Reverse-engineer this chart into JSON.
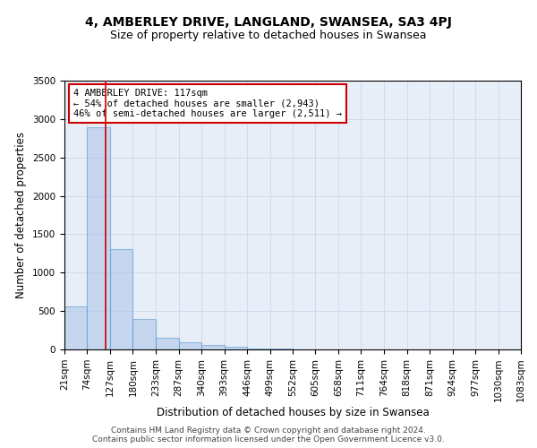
{
  "title": "4, AMBERLEY DRIVE, LANGLAND, SWANSEA, SA3 4PJ",
  "subtitle": "Size of property relative to detached houses in Swansea",
  "xlabel": "Distribution of detached houses by size in Swansea",
  "ylabel": "Number of detached properties",
  "footer_line1": "Contains HM Land Registry data © Crown copyright and database right 2024.",
  "footer_line2": "Contains public sector information licensed under the Open Government Licence v3.0.",
  "bin_edges": [
    21,
    74,
    127,
    180,
    233,
    287,
    340,
    393,
    446,
    499,
    552,
    605,
    658,
    711,
    764,
    818,
    871,
    924,
    977,
    1030,
    1083
  ],
  "bar_heights": [
    560,
    2890,
    1310,
    400,
    155,
    90,
    55,
    30,
    15,
    8,
    4,
    3,
    2,
    2,
    1,
    1,
    1,
    0,
    0,
    0
  ],
  "bar_facecolor": "#aec6e8",
  "bar_edgecolor": "#5b9bd5",
  "bar_alpha": 0.6,
  "grid_color": "#c8d8ec",
  "background_color": "#e8eef8",
  "annotation_line1": "4 AMBERLEY DRIVE: 117sqm",
  "annotation_line2": "← 54% of detached houses are smaller (2,943)",
  "annotation_line3": "46% of semi-detached houses are larger (2,511) →",
  "annotation_box_color": "#cc0000",
  "property_line_x": 117,
  "property_line_color": "#cc0000",
  "ylim": [
    0,
    3500
  ],
  "yticks": [
    0,
    500,
    1000,
    1500,
    2000,
    2500,
    3000,
    3500
  ],
  "title_fontsize": 10,
  "subtitle_fontsize": 9,
  "xlabel_fontsize": 8.5,
  "ylabel_fontsize": 8.5,
  "tick_fontsize": 7.5,
  "footer_fontsize": 6.5,
  "annot_fontsize": 7.5
}
